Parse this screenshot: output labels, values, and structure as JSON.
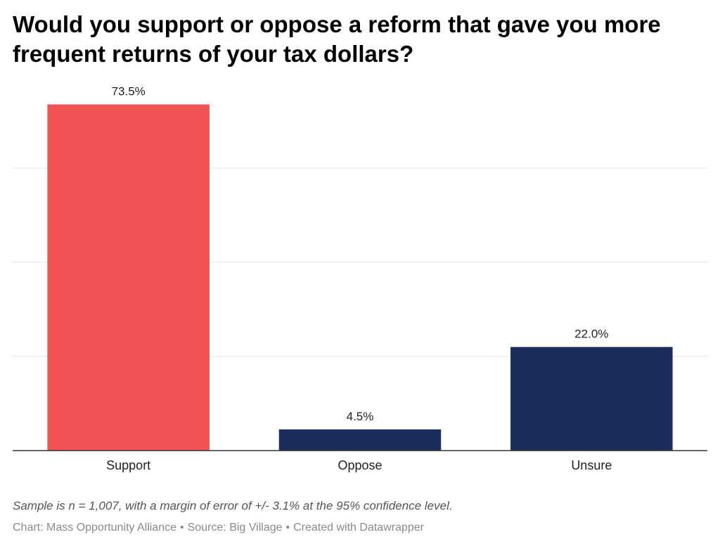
{
  "chart_data": {
    "type": "bar",
    "title": "Would you support or oppose a reform that gave you more frequent returns of your tax dollars?",
    "categories": [
      "Support",
      "Oppose",
      "Unsure"
    ],
    "values": [
      73.5,
      4.5,
      22.0
    ],
    "value_labels": [
      "73.5%",
      "4.5%",
      "22.0%"
    ],
    "colors": [
      "#f05353",
      "#1c2c5b",
      "#1c2c5b"
    ],
    "ylim": [
      0,
      80
    ],
    "grid": true,
    "gridline_values": [
      20,
      40,
      60
    ],
    "gridline_color": "#e4e4e4",
    "baseline_color": "#333333",
    "xlabel": "",
    "ylabel": ""
  },
  "notes": "Sample is n = 1,007, with a margin of error of +/- 3.1% at the 95% confidence level.",
  "byline": {
    "chart": "Chart: Mass Opportunity Alliance",
    "source": "Source: Big Village",
    "created": "Created with Datawrapper",
    "separator": "•"
  }
}
